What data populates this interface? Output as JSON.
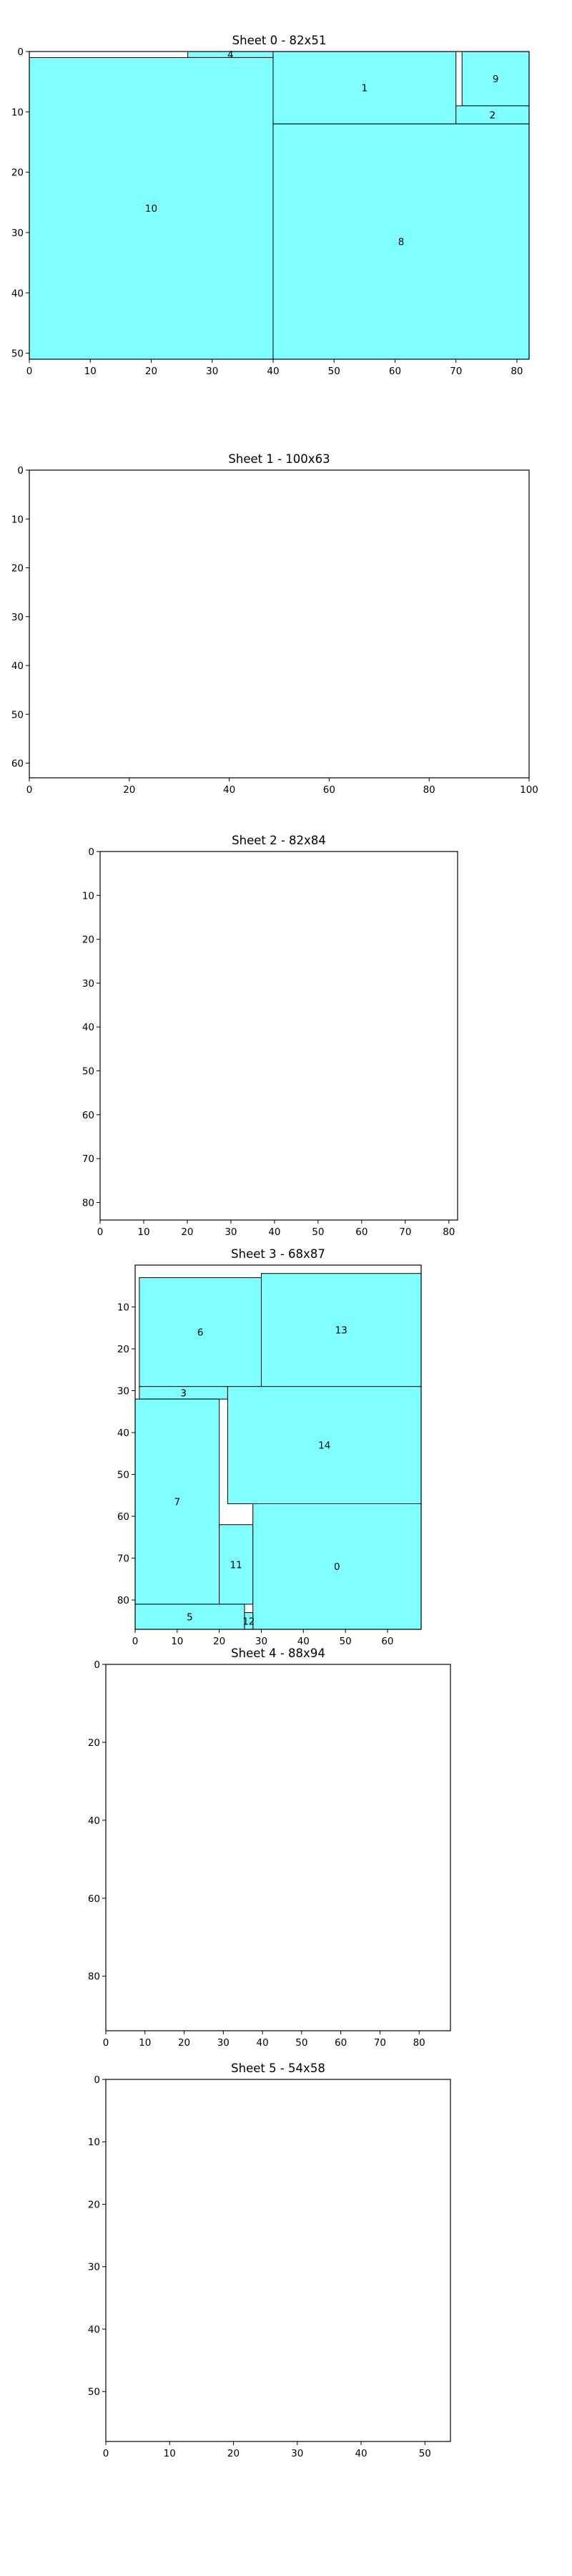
{
  "chart_data": [
    {
      "type": "bar",
      "title": "Sheet 0 - 82x51",
      "xlim": [
        0,
        82
      ],
      "ylim": [
        51,
        0
      ],
      "xticks": [
        0,
        10,
        20,
        30,
        40,
        50,
        60,
        70,
        80
      ],
      "yticks": [
        0,
        10,
        20,
        30,
        40,
        50
      ],
      "pieces": [
        {
          "id": "4",
          "x": 26,
          "y": 0,
          "w": 14,
          "h": 1
        },
        {
          "id": "1",
          "x": 40,
          "y": 0,
          "w": 30,
          "h": 12
        },
        {
          "id": "9",
          "x": 71,
          "y": 0,
          "w": 11,
          "h": 9
        },
        {
          "id": "2",
          "x": 70,
          "y": 9,
          "w": 12,
          "h": 3
        },
        {
          "id": "10",
          "x": 0,
          "y": 1,
          "w": 40,
          "h": 50
        },
        {
          "id": "8",
          "x": 40,
          "y": 12,
          "w": 42,
          "h": 39
        }
      ]
    },
    {
      "type": "bar",
      "title": "Sheet 1 - 100x63",
      "xlim": [
        0,
        100
      ],
      "ylim": [
        63,
        0
      ],
      "xticks": [
        0,
        20,
        40,
        60,
        80,
        100
      ],
      "yticks": [
        0,
        10,
        20,
        30,
        40,
        50,
        60
      ],
      "pieces": []
    },
    {
      "type": "bar",
      "title": "Sheet 2 - 82x84",
      "xlim": [
        0,
        82
      ],
      "ylim": [
        84,
        0
      ],
      "xticks": [
        0,
        10,
        20,
        30,
        40,
        50,
        60,
        70,
        80
      ],
      "yticks": [
        0,
        10,
        20,
        30,
        40,
        50,
        60,
        70,
        80
      ],
      "pieces": []
    },
    {
      "type": "bar",
      "title": "Sheet 3 - 68x87",
      "xlim": [
        0,
        68
      ],
      "ylim": [
        87,
        0
      ],
      "xticks": [
        0,
        10,
        20,
        30,
        40,
        50,
        60
      ],
      "yticks": [
        10,
        20,
        30,
        40,
        50,
        60,
        70,
        80
      ],
      "pieces": [
        {
          "id": "6",
          "x": 1,
          "y": 3,
          "w": 29,
          "h": 26
        },
        {
          "id": "13",
          "x": 30,
          "y": 2,
          "w": 38,
          "h": 27
        },
        {
          "id": "3",
          "x": 1,
          "y": 29,
          "w": 21,
          "h": 3
        },
        {
          "id": "14",
          "x": 22,
          "y": 29,
          "w": 46,
          "h": 28
        },
        {
          "id": "7",
          "x": 0,
          "y": 32,
          "w": 20,
          "h": 49
        },
        {
          "id": "11",
          "x": 20,
          "y": 62,
          "w": 8,
          "h": 19
        },
        {
          "id": "0",
          "x": 28,
          "y": 57,
          "w": 40,
          "h": 30
        },
        {
          "id": "5",
          "x": 0,
          "y": 81,
          "w": 26,
          "h": 6
        },
        {
          "id": "12",
          "x": 26,
          "y": 83,
          "w": 2,
          "h": 4
        }
      ]
    },
    {
      "type": "bar",
      "title": "Sheet 4 - 88x94",
      "xlim": [
        0,
        88
      ],
      "ylim": [
        94,
        0
      ],
      "xticks": [
        0,
        10,
        20,
        30,
        40,
        50,
        60,
        70,
        80
      ],
      "yticks": [
        0,
        20,
        40,
        60,
        80
      ],
      "pieces": []
    },
    {
      "type": "bar",
      "title": "Sheet 5 - 54x58",
      "xlim": [
        0,
        54
      ],
      "ylim": [
        58,
        0
      ],
      "xticks": [
        0,
        10,
        20,
        30,
        40,
        50
      ],
      "yticks": [
        0,
        10,
        20,
        30,
        40,
        50
      ],
      "pieces": []
    }
  ],
  "style": {
    "piece_fill": "#7fffff",
    "piece_stroke": "#000000",
    "axis_color": "#000000"
  }
}
